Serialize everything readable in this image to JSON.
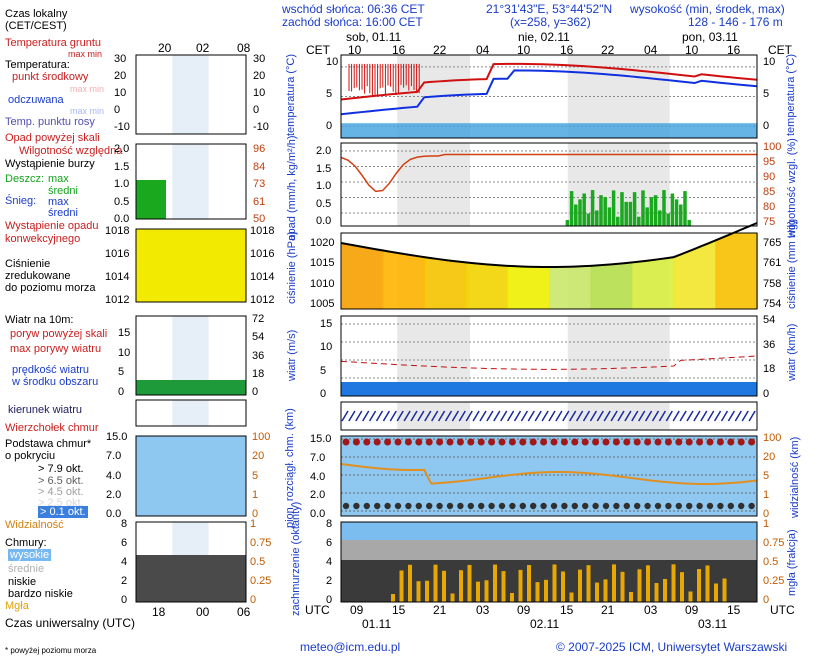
{
  "header": {
    "sunrise": "wschód słońca: 06:36 CET",
    "sunset": "zachód słońca: 16:00 CET",
    "coords": "21°31'43\"E, 53°44'52\"N",
    "grid": "(x=258, y=362)",
    "elev_label": "wysokość (min, środek, max)",
    "elev_values": "128 - 146 - 176 m",
    "cet": "CET",
    "days": [
      "sob, 01.11",
      "nie, 02.11",
      "pon, 03.11"
    ],
    "cet_hours": [
      "10",
      "16",
      "22",
      "04",
      "10",
      "16",
      "22",
      "04",
      "10",
      "16"
    ]
  },
  "legend": {
    "local_time": "Czas lokalny",
    "local_time2": "(CET/CEST)",
    "local_hours": [
      "20",
      "02",
      "08"
    ],
    "soil_temp": "Temperatura gruntu",
    "soil_temp2": "max min",
    "temperature": "Temperatura:",
    "temp_mid": "punkt środkowy",
    "temp_maxmin": "max min",
    "feels_like": "odczuwana",
    "feels_maxmin": "max min",
    "dew_point": "Temp. punktu rosy",
    "precip_over": "Opad powyżej skali",
    "humidity": "Wilgotność względna",
    "storm": "Wystąpienie burzy",
    "rain": "Deszcz:",
    "snow": "Śnieg:",
    "max": "max",
    "mean": "średni",
    "precip_occ": "Wystąpienie opadu",
    "precip_occ2": "konwekcyjnego",
    "pressure": "Ciśnienie",
    "pressure2": "zredukowane",
    "pressure3": "do poziomu morza",
    "wind10": "Wiatr na 10m:",
    "gust_over": "poryw powyżej skali",
    "gust_max": "max porywy wiatru",
    "wind_speed": "prędkość wiatru",
    "wind_speed2": "w środku obszaru",
    "wind_dir": "kierunek wiatru",
    "cloud_top": "Wierzchołek chmur",
    "cloud_base": "Podstawa chmur*",
    "cloud_base2": "o pokryciu",
    "okt1": "> 7.9 okt.",
    "okt2": "> 6.5 okt.",
    "okt3": "> 4.5 okt.",
    "okt4": "> 2.5 okt.",
    "okt5": "> 0.1 okt.",
    "visibility": "Widzialność",
    "clouds": "Chmury:",
    "high": "wysokie",
    "mid": "średnie",
    "low": "niskie",
    "very_low": "bardzo niskie",
    "fog": "Mgła",
    "utc_label": "Czas uniwersalny (UTC)",
    "utc_hours": [
      "18",
      "00",
      "06"
    ],
    "footnote": "* powyżej poziomu morza"
  },
  "axes": {
    "temperature": "temperatura (°C)",
    "temperature_right": "temperatura (°C)",
    "precip": "opad (mm/h, kg/m²/h)",
    "humidity": "wilgotność wzgl. (%)",
    "pressure": "ciśnienie (hPa)",
    "pressure_right": "ciśnienie (mm Hg)",
    "wind": "wiatr (m/s)",
    "wind_right": "wiatr (km/h)",
    "cloud_base": "pion. rozciągł. chm. (km)",
    "visibility": "widzialność (km)",
    "cloudiness": "zachmurzenie (oktanty)",
    "fog": "mgła (frakcja)",
    "ticks_temp_left": [
      "10",
      "5",
      "0"
    ],
    "ticks_temp_right": [
      "10",
      "5",
      "0"
    ],
    "ticks_precip_left": [
      "2.0",
      "1.5",
      "1.0",
      "0.5",
      "0.0"
    ],
    "ticks_hum_right": [
      "100",
      "95",
      "90",
      "85",
      "80",
      "75"
    ],
    "ticks_press_left": [
      "1020",
      "1015",
      "1010",
      "1005"
    ],
    "ticks_press_right": [
      "765",
      "761",
      "758",
      "754"
    ],
    "ticks_wind_left": [
      "15",
      "10",
      "5",
      "0"
    ],
    "ticks_wind_right": [
      "54",
      "36",
      "18",
      "0"
    ],
    "ticks_cb_left": [
      "15.0",
      "7.0",
      "4.0",
      "2.0",
      "0.0"
    ],
    "ticks_vis_right": [
      "100",
      "20",
      "5",
      "1",
      "0"
    ],
    "ticks_cl_left": [
      "8",
      "6",
      "4",
      "2",
      "0"
    ],
    "ticks_fog_right": [
      "1",
      "0.75",
      "0.5",
      "0.25",
      "0"
    ],
    "utc": "UTC",
    "utc_hours": [
      "09",
      "15",
      "21",
      "03",
      "09",
      "15",
      "21",
      "03",
      "09",
      "15"
    ],
    "utc_dates": [
      "01.11",
      "02.11",
      "03.11"
    ],
    "legend_temp_ticks": [
      "30",
      "20",
      "10",
      "0",
      "-10"
    ],
    "legend_precip_ticks": [
      "2.0",
      "1.5",
      "1.0",
      "0.5",
      "0.0"
    ],
    "legend_hum_ticks": [
      "96",
      "84",
      "73",
      "61",
      "50"
    ],
    "legend_press_ticks": [
      "1018",
      "1016",
      "1014",
      "1012"
    ],
    "legend_press_right": [
      "1018",
      "1016",
      "1014",
      "1012"
    ],
    "legend_wind_left": [
      "15",
      "10",
      "5",
      "0"
    ],
    "legend_wind_right": [
      "72",
      "54",
      "36",
      "18",
      "0"
    ],
    "legend_cb_left": [
      "15.0",
      "7.0",
      "4.0",
      "2.0",
      "0.0"
    ],
    "legend_vis_right": [
      "100",
      "20",
      "5",
      "1",
      "0"
    ],
    "legend_cl_left": [
      "8",
      "6",
      "4",
      "2",
      "0"
    ],
    "legend_fog_right": [
      "1",
      "0.75",
      "0.5",
      "0.25",
      "0"
    ],
    "legend_temp_right": [
      "30",
      "20",
      "10",
      "0",
      "-10"
    ]
  },
  "footer": {
    "email": "meteo@icm.edu.pl",
    "copyright": "© 2007-2025 ICM, Uniwersytet Warszawski"
  },
  "colors": {
    "temp": "#d01010",
    "feels": "#1030e0",
    "humidity": "#d04010",
    "precip": "#19a81e",
    "wind_gust": "#c01010",
    "wind_fill": "#1e78e0",
    "visibility": "#e09020",
    "fog": "#e8a800",
    "night": "#e8e8e8"
  }
}
